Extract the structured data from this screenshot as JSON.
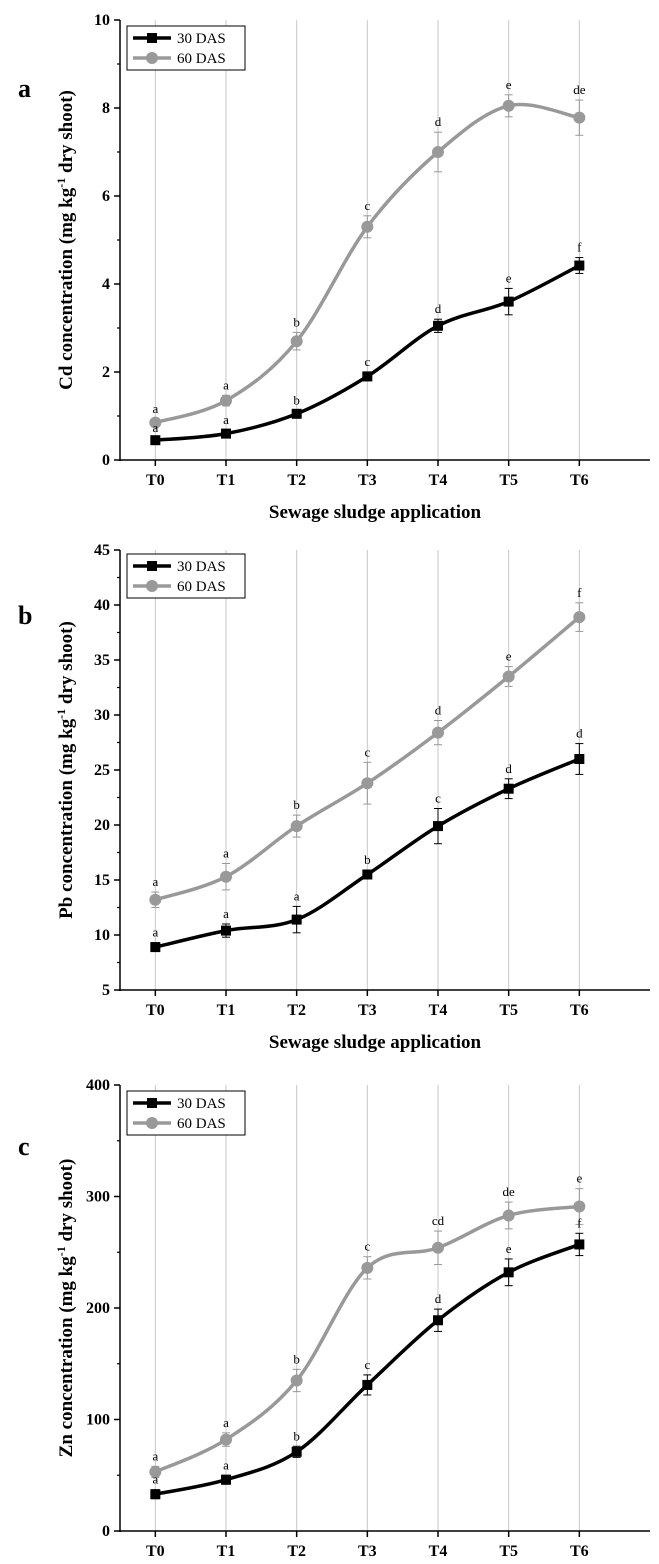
{
  "colors": {
    "series_30": "#000000",
    "series_60": "#999999",
    "grid": "#c8c8c8",
    "axis": "#000000"
  },
  "chart_data": [
    {
      "panel": "a",
      "type": "line",
      "categories": [
        "T0",
        "T1",
        "T2",
        "T3",
        "T4",
        "T5",
        "T6"
      ],
      "xlabel": "Sewage sludge application",
      "ylabel_main": "Cd concentration (mg kg",
      "ylabel_sup": "-1",
      "ylabel_end": " dry shoot)",
      "ylim": [
        0,
        10
      ],
      "yticks": [
        0,
        2,
        4,
        6,
        8,
        10
      ],
      "grid": "vertical",
      "legend": "top-left",
      "series": [
        {
          "name": "30 DAS",
          "values": [
            0.45,
            0.6,
            1.05,
            1.9,
            3.05,
            3.6,
            4.42
          ],
          "errors": [
            0.05,
            0.08,
            0.08,
            0.1,
            0.15,
            0.3,
            0.18
          ],
          "labels": [
            "a",
            "a",
            "b",
            "c",
            "d",
            "e",
            "f"
          ]
        },
        {
          "name": "60 DAS",
          "values": [
            0.85,
            1.35,
            2.7,
            5.3,
            7.0,
            8.05,
            7.78
          ],
          "errors": [
            0.08,
            0.12,
            0.2,
            0.25,
            0.45,
            0.25,
            0.4
          ],
          "labels": [
            "a",
            "a",
            "b",
            "c",
            "d",
            "e",
            "de"
          ]
        }
      ]
    },
    {
      "panel": "b",
      "type": "line",
      "categories": [
        "T0",
        "T1",
        "T2",
        "T3",
        "T4",
        "T5",
        "T6"
      ],
      "xlabel": "Sewage sludge application",
      "ylabel_main": "Pb concentration (mg kg",
      "ylabel_sup": "-1",
      "ylabel_end": " dry shoot)",
      "ylim": [
        5,
        45
      ],
      "yticks": [
        5,
        10,
        15,
        20,
        25,
        30,
        35,
        40,
        45
      ],
      "grid": "vertical",
      "legend": "top-left",
      "series": [
        {
          "name": "30 DAS",
          "values": [
            8.9,
            10.4,
            11.4,
            15.5,
            19.9,
            23.3,
            26.0
          ],
          "errors": [
            0.4,
            0.6,
            1.2,
            0.4,
            1.6,
            0.9,
            1.4
          ],
          "labels": [
            "a",
            "a",
            "a",
            "b",
            "c",
            "d",
            "d"
          ]
        },
        {
          "name": "60 DAS",
          "values": [
            13.2,
            15.3,
            19.9,
            23.8,
            28.4,
            33.5,
            38.9
          ],
          "errors": [
            0.7,
            1.2,
            1.0,
            1.9,
            1.1,
            0.9,
            1.3
          ],
          "labels": [
            "a",
            "a",
            "b",
            "c",
            "d",
            "e",
            "f"
          ]
        }
      ]
    },
    {
      "panel": "c",
      "type": "line",
      "categories": [
        "T0",
        "T1",
        "T2",
        "T3",
        "T4",
        "T5",
        "T6"
      ],
      "xlabel": "",
      "ylabel_main": "Zn concentration (mg kg",
      "ylabel_sup": "-1",
      "ylabel_end": " dry shoot)",
      "ylim": [
        0,
        400
      ],
      "yticks": [
        0,
        100,
        200,
        300,
        400
      ],
      "grid": "vertical",
      "legend": "top-left",
      "series": [
        {
          "name": "30 DAS",
          "values": [
            33,
            46,
            71,
            131,
            189,
            232,
            257
          ],
          "errors": [
            4,
            4,
            5,
            9,
            10,
            12,
            10
          ],
          "labels": [
            "a",
            "a",
            "b",
            "c",
            "d",
            "e",
            "f"
          ]
        },
        {
          "name": "60 DAS",
          "values": [
            53,
            82,
            135,
            236,
            254,
            283,
            291
          ],
          "errors": [
            5,
            6,
            10,
            10,
            15,
            12,
            16
          ],
          "labels": [
            "a",
            "a",
            "b",
            "c",
            "cd",
            "de",
            "e"
          ]
        }
      ]
    }
  ]
}
